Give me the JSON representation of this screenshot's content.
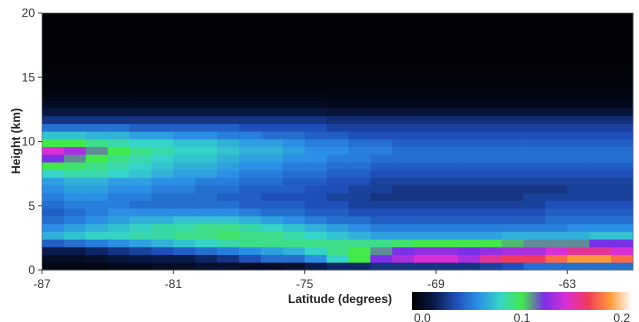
{
  "chart_data": {
    "type": "heatmap",
    "title": "",
    "xlabel": "Latitude (degrees)",
    "ylabel": "Height (km)",
    "xlim": [
      -87,
      -60
    ],
    "ylim": [
      0,
      20
    ],
    "xticks": [
      -87,
      -81,
      -75,
      -69,
      -63
    ],
    "yticks": [
      0,
      5,
      10,
      15,
      20
    ],
    "x_edges": [
      -87,
      -86,
      -85,
      -84,
      -83,
      -82,
      -81,
      -80,
      -79,
      -78,
      -77,
      -76,
      -75,
      -74,
      -73,
      -72,
      -71,
      -70,
      -69,
      -68,
      -67,
      -66,
      -65,
      -64,
      -63,
      -62,
      -61,
      -60
    ],
    "y_edges": [
      0,
      0.6,
      1.2,
      1.8,
      2.4,
      3,
      3.6,
      4.2,
      4.8,
      5.4,
      6,
      6.6,
      7.2,
      7.8,
      8.4,
      9,
      9.6,
      10.2,
      10.8,
      11.4,
      12,
      12.6,
      13.2,
      13.8,
      14.4,
      15,
      15.6,
      16.2,
      16.8,
      17.4,
      18,
      18.6,
      19.2,
      20
    ],
    "values": [
      [
        0.005,
        0.005,
        0.005,
        0.008,
        0.008,
        0.01,
        0.01,
        0.012,
        0.012,
        0.01,
        0.01,
        0.012,
        0.02,
        0.025,
        0.025,
        0.03,
        0.03,
        0.03,
        0.03,
        0.03,
        0.035,
        0.04,
        0.05,
        0.05,
        0.05,
        0.05,
        0.05
      ],
      [
        0.01,
        0.01,
        0.012,
        0.015,
        0.018,
        0.02,
        0.02,
        0.025,
        0.03,
        0.04,
        0.05,
        0.05,
        0.06,
        0.08,
        0.1,
        0.12,
        0.13,
        0.14,
        0.14,
        0.13,
        0.15,
        0.16,
        0.16,
        0.17,
        0.18,
        0.18,
        0.17
      ],
      [
        0.02,
        0.02,
        0.025,
        0.03,
        0.035,
        0.04,
        0.045,
        0.05,
        0.055,
        0.06,
        0.065,
        0.07,
        0.08,
        0.09,
        0.1,
        0.11,
        0.12,
        0.125,
        0.125,
        0.12,
        0.125,
        0.13,
        0.13,
        0.14,
        0.15,
        0.15,
        0.14
      ],
      [
        0.045,
        0.05,
        0.055,
        0.06,
        0.065,
        0.07,
        0.075,
        0.08,
        0.085,
        0.09,
        0.09,
        0.09,
        0.09,
        0.09,
        0.09,
        0.09,
        0.095,
        0.1,
        0.1,
        0.1,
        0.1,
        0.105,
        0.11,
        0.11,
        0.11,
        0.12,
        0.12
      ],
      [
        0.07,
        0.075,
        0.08,
        0.08,
        0.085,
        0.085,
        0.09,
        0.09,
        0.095,
        0.09,
        0.09,
        0.085,
        0.08,
        0.075,
        0.07,
        0.065,
        0.065,
        0.065,
        0.065,
        0.065,
        0.065,
        0.07,
        0.07,
        0.07,
        0.07,
        0.075,
        0.075
      ],
      [
        0.06,
        0.065,
        0.07,
        0.075,
        0.08,
        0.085,
        0.085,
        0.09,
        0.09,
        0.085,
        0.08,
        0.075,
        0.07,
        0.065,
        0.06,
        0.055,
        0.055,
        0.055,
        0.055,
        0.055,
        0.055,
        0.055,
        0.055,
        0.055,
        0.06,
        0.06,
        0.06
      ],
      [
        0.05,
        0.055,
        0.06,
        0.065,
        0.07,
        0.07,
        0.075,
        0.075,
        0.075,
        0.07,
        0.065,
        0.06,
        0.055,
        0.05,
        0.05,
        0.045,
        0.045,
        0.045,
        0.045,
        0.045,
        0.045,
        0.045,
        0.045,
        0.05,
        0.05,
        0.05,
        0.05
      ],
      [
        0.045,
        0.05,
        0.055,
        0.06,
        0.06,
        0.06,
        0.06,
        0.06,
        0.06,
        0.055,
        0.05,
        0.05,
        0.045,
        0.045,
        0.04,
        0.04,
        0.04,
        0.04,
        0.04,
        0.04,
        0.04,
        0.04,
        0.04,
        0.045,
        0.045,
        0.045,
        0.045
      ],
      [
        0.05,
        0.055,
        0.055,
        0.055,
        0.05,
        0.05,
        0.05,
        0.05,
        0.05,
        0.045,
        0.045,
        0.045,
        0.04,
        0.04,
        0.035,
        0.035,
        0.035,
        0.035,
        0.035,
        0.035,
        0.035,
        0.035,
        0.035,
        0.04,
        0.04,
        0.04,
        0.04
      ],
      [
        0.055,
        0.06,
        0.06,
        0.055,
        0.055,
        0.05,
        0.05,
        0.05,
        0.045,
        0.045,
        0.04,
        0.04,
        0.04,
        0.035,
        0.035,
        0.03,
        0.03,
        0.03,
        0.03,
        0.03,
        0.03,
        0.03,
        0.035,
        0.035,
        0.035,
        0.035,
        0.035
      ],
      [
        0.06,
        0.065,
        0.065,
        0.06,
        0.06,
        0.055,
        0.055,
        0.05,
        0.05,
        0.045,
        0.045,
        0.045,
        0.04,
        0.04,
        0.035,
        0.035,
        0.03,
        0.03,
        0.03,
        0.03,
        0.03,
        0.03,
        0.03,
        0.03,
        0.035,
        0.035,
        0.035
      ],
      [
        0.065,
        0.07,
        0.07,
        0.065,
        0.065,
        0.06,
        0.06,
        0.055,
        0.055,
        0.05,
        0.05,
        0.045,
        0.045,
        0.04,
        0.04,
        0.035,
        0.035,
        0.035,
        0.035,
        0.035,
        0.035,
        0.035,
        0.035,
        0.035,
        0.035,
        0.035,
        0.035
      ],
      [
        0.08,
        0.085,
        0.085,
        0.08,
        0.075,
        0.07,
        0.065,
        0.065,
        0.06,
        0.055,
        0.055,
        0.05,
        0.05,
        0.045,
        0.045,
        0.04,
        0.04,
        0.04,
        0.04,
        0.04,
        0.04,
        0.04,
        0.04,
        0.04,
        0.04,
        0.04,
        0.04
      ],
      [
        0.1,
        0.095,
        0.09,
        0.085,
        0.08,
        0.075,
        0.07,
        0.07,
        0.065,
        0.06,
        0.06,
        0.055,
        0.055,
        0.05,
        0.05,
        0.045,
        0.045,
        0.045,
        0.045,
        0.045,
        0.045,
        0.045,
        0.045,
        0.045,
        0.045,
        0.045,
        0.045
      ],
      [
        0.12,
        0.11,
        0.1,
        0.09,
        0.085,
        0.08,
        0.075,
        0.075,
        0.07,
        0.065,
        0.065,
        0.06,
        0.06,
        0.055,
        0.055,
        0.05,
        0.05,
        0.05,
        0.05,
        0.05,
        0.05,
        0.05,
        0.05,
        0.05,
        0.05,
        0.05,
        0.05
      ],
      [
        0.14,
        0.13,
        0.11,
        0.1,
        0.09,
        0.085,
        0.08,
        0.08,
        0.075,
        0.07,
        0.07,
        0.065,
        0.06,
        0.06,
        0.055,
        0.055,
        0.05,
        0.05,
        0.05,
        0.05,
        0.05,
        0.05,
        0.05,
        0.05,
        0.05,
        0.05,
        0.05
      ],
      [
        0.1,
        0.1,
        0.09,
        0.085,
        0.08,
        0.08,
        0.075,
        0.075,
        0.07,
        0.065,
        0.065,
        0.06,
        0.055,
        0.055,
        0.05,
        0.05,
        0.045,
        0.045,
        0.045,
        0.045,
        0.045,
        0.045,
        0.045,
        0.045,
        0.045,
        0.045,
        0.045
      ],
      [
        0.075,
        0.075,
        0.07,
        0.07,
        0.065,
        0.065,
        0.06,
        0.06,
        0.055,
        0.055,
        0.05,
        0.05,
        0.045,
        0.045,
        0.04,
        0.04,
        0.04,
        0.04,
        0.04,
        0.04,
        0.04,
        0.04,
        0.04,
        0.04,
        0.04,
        0.04,
        0.04
      ],
      [
        0.05,
        0.05,
        0.05,
        0.05,
        0.045,
        0.045,
        0.045,
        0.045,
        0.045,
        0.04,
        0.04,
        0.04,
        0.04,
        0.035,
        0.035,
        0.035,
        0.035,
        0.035,
        0.035,
        0.035,
        0.035,
        0.035,
        0.035,
        0.035,
        0.035,
        0.035,
        0.035
      ],
      [
        0.03,
        0.03,
        0.03,
        0.03,
        0.03,
        0.03,
        0.03,
        0.03,
        0.03,
        0.03,
        0.03,
        0.03,
        0.03,
        0.028,
        0.028,
        0.028,
        0.028,
        0.028,
        0.028,
        0.028,
        0.028,
        0.028,
        0.028,
        0.028,
        0.028,
        0.028,
        0.028
      ],
      [
        0.018,
        0.018,
        0.018,
        0.018,
        0.018,
        0.018,
        0.018,
        0.018,
        0.018,
        0.018,
        0.018,
        0.018,
        0.018,
        0.016,
        0.016,
        0.016,
        0.016,
        0.016,
        0.016,
        0.016,
        0.016,
        0.016,
        0.016,
        0.016,
        0.016,
        0.016,
        0.016
      ],
      [
        0.01,
        0.01,
        0.01,
        0.01,
        0.01,
        0.01,
        0.01,
        0.01,
        0.01,
        0.01,
        0.01,
        0.01,
        0.01,
        0.008,
        0.008,
        0.008,
        0.008,
        0.008,
        0.008,
        0.008,
        0.008,
        0.008,
        0.008,
        0.008,
        0.008,
        0.008,
        0.008
      ],
      [
        0.006,
        0.006,
        0.006,
        0.006,
        0.006,
        0.006,
        0.006,
        0.006,
        0.006,
        0.006,
        0.006,
        0.006,
        0.006,
        0.005,
        0.005,
        0.005,
        0.005,
        0.005,
        0.005,
        0.005,
        0.005,
        0.005,
        0.005,
        0.005,
        0.005,
        0.005,
        0.005
      ],
      [
        0.004,
        0.004,
        0.004,
        0.004,
        0.004,
        0.004,
        0.004,
        0.004,
        0.004,
        0.004,
        0.004,
        0.004,
        0.004,
        0.004,
        0.004,
        0.004,
        0.004,
        0.004,
        0.004,
        0.004,
        0.004,
        0.004,
        0.004,
        0.004,
        0.004,
        0.004,
        0.004
      ],
      [
        0.003,
        0.003,
        0.003,
        0.003,
        0.003,
        0.003,
        0.003,
        0.003,
        0.003,
        0.003,
        0.003,
        0.003,
        0.003,
        0.003,
        0.003,
        0.003,
        0.003,
        0.003,
        0.003,
        0.003,
        0.003,
        0.003,
        0.003,
        0.003,
        0.003,
        0.003,
        0.003
      ],
      [
        0.003,
        0.003,
        0.003,
        0.003,
        0.003,
        0.003,
        0.003,
        0.003,
        0.003,
        0.003,
        0.003,
        0.003,
        0.003,
        0.003,
        0.003,
        0.003,
        0.003,
        0.003,
        0.003,
        0.003,
        0.003,
        0.003,
        0.003,
        0.003,
        0.003,
        0.003,
        0.003
      ],
      [
        0.002,
        0.002,
        0.002,
        0.002,
        0.002,
        0.002,
        0.002,
        0.002,
        0.002,
        0.002,
        0.002,
        0.002,
        0.002,
        0.002,
        0.002,
        0.002,
        0.002,
        0.002,
        0.002,
        0.002,
        0.002,
        0.002,
        0.002,
        0.002,
        0.002,
        0.002,
        0.002
      ],
      [
        0.002,
        0.002,
        0.002,
        0.002,
        0.002,
        0.002,
        0.002,
        0.002,
        0.002,
        0.002,
        0.002,
        0.002,
        0.002,
        0.002,
        0.002,
        0.002,
        0.002,
        0.002,
        0.002,
        0.002,
        0.002,
        0.002,
        0.002,
        0.002,
        0.002,
        0.002,
        0.002
      ],
      [
        0.002,
        0.002,
        0.002,
        0.002,
        0.002,
        0.002,
        0.002,
        0.002,
        0.002,
        0.002,
        0.002,
        0.002,
        0.002,
        0.002,
        0.002,
        0.002,
        0.002,
        0.002,
        0.002,
        0.002,
        0.002,
        0.002,
        0.002,
        0.002,
        0.002,
        0.002,
        0.002
      ],
      [
        0.002,
        0.002,
        0.002,
        0.002,
        0.002,
        0.002,
        0.002,
        0.002,
        0.002,
        0.002,
        0.002,
        0.002,
        0.002,
        0.002,
        0.002,
        0.002,
        0.002,
        0.002,
        0.002,
        0.002,
        0.002,
        0.002,
        0.002,
        0.002,
        0.002,
        0.002,
        0.002
      ],
      [
        0.002,
        0.002,
        0.002,
        0.002,
        0.002,
        0.002,
        0.002,
        0.002,
        0.002,
        0.002,
        0.002,
        0.002,
        0.002,
        0.002,
        0.002,
        0.002,
        0.002,
        0.002,
        0.002,
        0.002,
        0.002,
        0.002,
        0.002,
        0.002,
        0.002,
        0.002,
        0.002
      ],
      [
        0.002,
        0.002,
        0.002,
        0.002,
        0.002,
        0.002,
        0.002,
        0.002,
        0.002,
        0.002,
        0.002,
        0.002,
        0.002,
        0.002,
        0.002,
        0.002,
        0.002,
        0.002,
        0.002,
        0.002,
        0.002,
        0.002,
        0.002,
        0.002,
        0.002,
        0.002,
        0.002
      ],
      [
        0.002,
        0.002,
        0.002,
        0.002,
        0.002,
        0.002,
        0.002,
        0.002,
        0.002,
        0.002,
        0.002,
        0.002,
        0.002,
        0.002,
        0.002,
        0.002,
        0.002,
        0.002,
        0.002,
        0.002,
        0.002,
        0.002,
        0.002,
        0.002,
        0.002,
        0.002,
        0.002
      ]
    ],
    "colorbar": {
      "range": [
        0.0,
        0.2
      ],
      "ticks": [
        0.0,
        0.1,
        0.2
      ],
      "tick_labels": [
        "0.0",
        "0.1",
        "0.2"
      ],
      "stops": [
        {
          "v": 0.0,
          "color": "#000000"
        },
        {
          "v": 0.02,
          "color": "#0a1a4a"
        },
        {
          "v": 0.04,
          "color": "#1f4fb8"
        },
        {
          "v": 0.06,
          "color": "#2b8fe6"
        },
        {
          "v": 0.08,
          "color": "#36d3c8"
        },
        {
          "v": 0.1,
          "color": "#43e84a"
        },
        {
          "v": 0.12,
          "color": "#7b2fe6"
        },
        {
          "v": 0.14,
          "color": "#d92fd6"
        },
        {
          "v": 0.16,
          "color": "#f23a5a"
        },
        {
          "v": 0.18,
          "color": "#ff9a3a"
        },
        {
          "v": 0.2,
          "color": "#ffffff"
        }
      ]
    }
  }
}
